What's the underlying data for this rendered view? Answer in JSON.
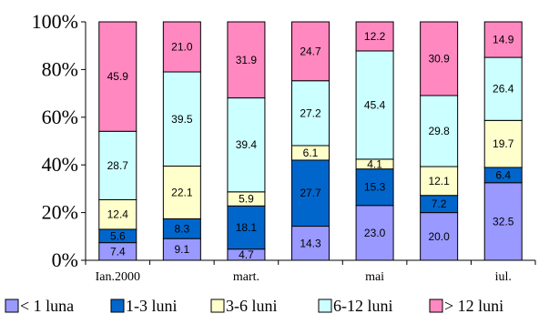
{
  "chart_data": {
    "type": "bar",
    "stacked": true,
    "normalized": true,
    "categories": [
      "Ian.2000",
      "",
      "mart.",
      "",
      "mai",
      "",
      "iul."
    ],
    "series": [
      {
        "name": "< 1 luna",
        "color": "#9999FF",
        "values": [
          7.4,
          9.1,
          4.7,
          14.3,
          23.0,
          20.0,
          32.5
        ]
      },
      {
        "name": "1-3 luni",
        "color": "#0066CC",
        "values": [
          5.6,
          8.3,
          18.1,
          27.7,
          15.3,
          7.2,
          6.4
        ]
      },
      {
        "name": "3-6 luni",
        "color": "#FFFFCC",
        "values": [
          12.4,
          22.1,
          5.9,
          6.1,
          4.1,
          12.1,
          19.7
        ]
      },
      {
        "name": "6-12 luni",
        "color": "#CCFFFF",
        "values": [
          28.7,
          39.5,
          39.4,
          27.2,
          45.4,
          29.8,
          26.4
        ]
      },
      {
        "name": "> 12 luni",
        "color": "#FF88C0",
        "values": [
          45.9,
          21.0,
          31.9,
          24.7,
          12.2,
          30.9,
          14.9
        ]
      }
    ],
    "yticks": [
      "0%",
      "20%",
      "40%",
      "60%",
      "80%",
      "100%"
    ],
    "ylim": [
      0,
      100
    ],
    "title": "",
    "xlabel": "",
    "ylabel": "",
    "grid": false,
    "legend_position": "bottom"
  }
}
